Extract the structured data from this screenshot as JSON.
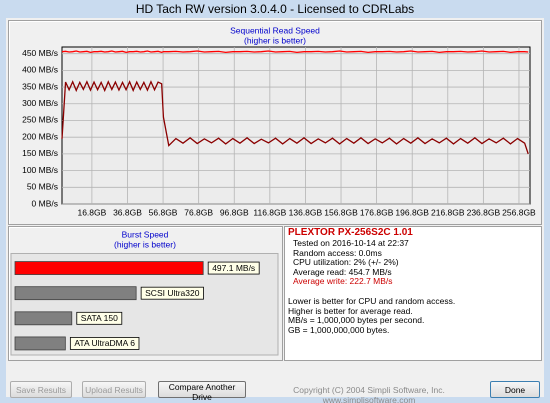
{
  "window": {
    "title": "HD Tach RW version 3.0.4.0 - Licensed to CDRLabs"
  },
  "chart_data": [
    {
      "type": "line",
      "title": "Sequential Read Speed",
      "subtitle": "(higher is better)",
      "x": [
        0,
        2,
        4,
        6,
        8,
        10,
        12,
        14,
        16,
        18,
        20,
        22,
        24,
        26,
        28,
        30,
        32,
        34,
        36,
        38,
        40,
        42,
        44,
        46,
        48,
        50,
        52,
        54,
        56,
        57,
        60,
        64,
        68,
        72,
        76,
        80,
        84,
        88,
        92,
        96,
        100,
        104,
        108,
        112,
        116,
        120,
        124,
        128,
        132,
        136,
        140,
        144,
        148,
        152,
        156,
        160,
        164,
        168,
        172,
        176,
        180,
        184,
        188,
        192,
        196,
        200,
        204,
        208,
        212,
        216,
        220,
        224,
        228,
        232,
        236,
        240,
        244,
        248,
        252,
        256,
        260,
        262
      ],
      "series": [
        {
          "color": "#ff0000",
          "values": [
            456,
            457,
            455,
            456,
            458,
            455,
            456,
            457,
            454,
            456,
            456,
            457,
            455,
            456,
            458,
            455,
            456,
            457,
            454,
            456,
            456,
            457,
            455,
            456,
            458,
            455,
            456,
            457,
            454,
            456,
            456,
            457,
            455,
            456,
            458,
            455,
            456,
            457,
            454,
            456,
            456,
            457,
            455,
            456,
            458,
            455,
            456,
            457,
            454,
            456,
            456,
            457,
            455,
            456,
            458,
            455,
            456,
            457,
            454,
            456,
            456,
            457,
            455,
            456,
            458,
            455,
            456,
            457,
            454,
            456,
            456,
            457,
            455,
            456,
            458,
            455,
            456,
            457,
            454,
            456,
            456,
            455
          ]
        },
        {
          "color": "#8b0000",
          "values": [
            195,
            365,
            342,
            366,
            340,
            364,
            343,
            366,
            341,
            365,
            342,
            364,
            340,
            366,
            343,
            365,
            341,
            364,
            342,
            366,
            340,
            365,
            343,
            364,
            341,
            366,
            342,
            365,
            360,
            260,
            175,
            196,
            182,
            198,
            181,
            195,
            183,
            197,
            180,
            196,
            182,
            198,
            181,
            194,
            183,
            197,
            180,
            196,
            182,
            198,
            181,
            195,
            183,
            197,
            180,
            196,
            182,
            198,
            181,
            195,
            183,
            197,
            180,
            196,
            182,
            198,
            181,
            195,
            183,
            197,
            180,
            196,
            182,
            198,
            181,
            195,
            183,
            197,
            180,
            196,
            182,
            150
          ]
        }
      ],
      "xlim": [
        0,
        263
      ],
      "ylim": [
        0,
        470
      ],
      "xticks": [
        {
          "value": 16.8,
          "label": "16.8GB"
        },
        {
          "value": 36.8,
          "label": "36.8GB"
        },
        {
          "value": 56.8,
          "label": "56.8GB"
        },
        {
          "value": 76.8,
          "label": "76.8GB"
        },
        {
          "value": 96.8,
          "label": "96.8GB"
        },
        {
          "value": 116.8,
          "label": "116.8GB"
        },
        {
          "value": 136.8,
          "label": "136.8GB"
        },
        {
          "value": 156.8,
          "label": "156.8GB"
        },
        {
          "value": 176.8,
          "label": "176.8GB"
        },
        {
          "value": 196.8,
          "label": "196.8GB"
        },
        {
          "value": 216.8,
          "label": "216.8GB"
        },
        {
          "value": 236.8,
          "label": "236.8GB"
        },
        {
          "value": 256.8,
          "label": "256.8GB"
        }
      ],
      "yticks": [
        {
          "value": 0,
          "label": "0 MB/s"
        },
        {
          "value": 50,
          "label": "50 MB/s"
        },
        {
          "value": 100,
          "label": "100 MB/s"
        },
        {
          "value": 150,
          "label": "150 MB/s"
        },
        {
          "value": 200,
          "label": "200 MB/s"
        },
        {
          "value": 250,
          "label": "250 MB/s"
        },
        {
          "value": 300,
          "label": "300 MB/s"
        },
        {
          "value": 350,
          "label": "350 MB/s"
        },
        {
          "value": 400,
          "label": "400 MB/s"
        },
        {
          "value": 450,
          "label": "450 MB/s"
        }
      ],
      "grid": true
    },
    {
      "type": "bar",
      "orientation": "horizontal",
      "title": "Burst Speed",
      "subtitle": "(higher is better)",
      "categories": [
        null,
        "SCSI Ultra320",
        "SATA 150",
        "ATA UltraDMA 6"
      ],
      "values": [
        497.1,
        320,
        150,
        133
      ],
      "value_labels": [
        "497.1 MB/s",
        null,
        null,
        null
      ],
      "colors": [
        "#ff0000",
        "#808080",
        "#808080",
        "#808080"
      ],
      "xlim": [
        0,
        700
      ]
    }
  ],
  "info": {
    "device": "PLEXTOR PX-256S2C 1.01",
    "lines": [
      "Tested on 2016-10-14 at 22:37",
      "Random access: 0.0ms",
      "CPU utilization: 2% (+/- 2%)",
      "Average read: 454.7 MB/s",
      "Average write: 222.7 MB/s"
    ],
    "notes": [
      "Lower is better for CPU and random access.",
      "Higher is better for average read.",
      "MB/s = 1,000,000 bytes per second.",
      "GB = 1,000,000,000 bytes."
    ]
  },
  "footer": {
    "copyright": "Copyright (C) 2004 Simpli Software, Inc. www.simplisoftware.com"
  },
  "buttons": {
    "save": "Save Results",
    "upload": "Upload Results",
    "compare": "Compare Another Drive",
    "done": "Done"
  }
}
